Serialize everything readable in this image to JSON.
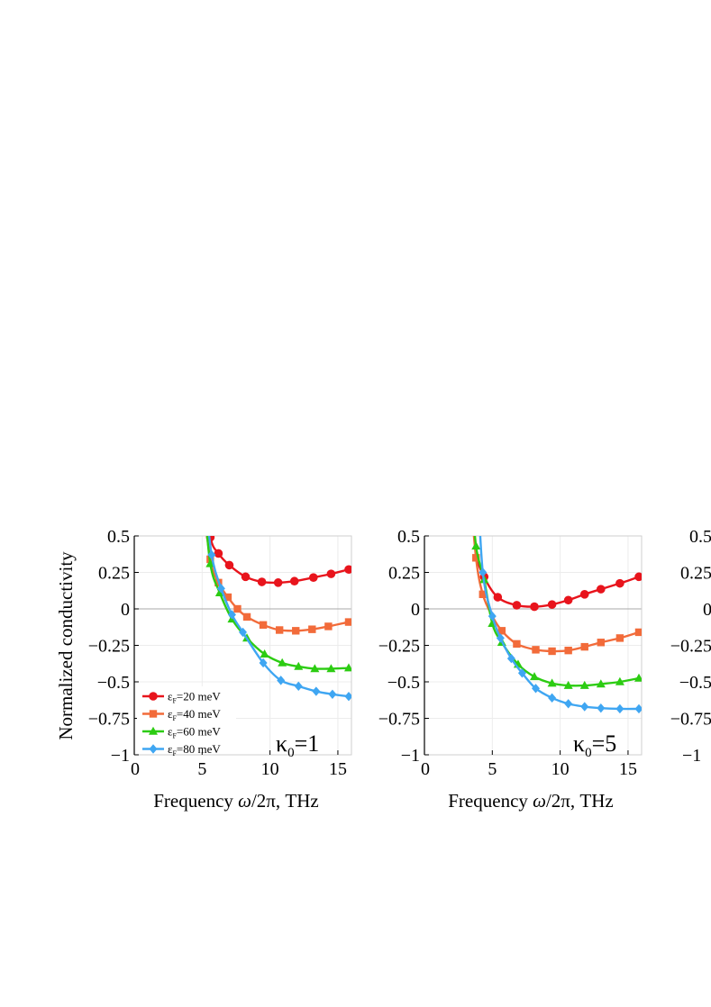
{
  "chart_data": [
    {
      "type": "line",
      "panel_label": "κ₀=1",
      "kappa_symbol": "κ",
      "kappa_sub": "0",
      "kappa_value": "=1",
      "xlabel_prefix": "Frequency ",
      "xlabel_omega": "ω",
      "xlabel_suffix": "/2π, THz",
      "ylabel": "Normalized conductivity",
      "xlim": [
        0,
        16
      ],
      "ylim": [
        -1,
        0.5
      ],
      "xticks": [
        "0",
        "5",
        "10",
        "15"
      ],
      "yticks": [
        "0.5",
        "0.25",
        "0",
        "−0.25",
        "−0.5",
        "−0.75",
        "−1"
      ],
      "legend": [
        {
          "prefix": "ε",
          "sub": "F",
          "suffix": "=20 meV"
        },
        {
          "prefix": "ε",
          "sub": "F",
          "suffix": "=40 meV"
        },
        {
          "prefix": "ε",
          "sub": "F",
          "suffix": "=60 meV"
        },
        {
          "prefix": "ε",
          "sub": "F",
          "suffix": "=80 meV"
        }
      ],
      "series": [
        {
          "name": "εF=20 meV",
          "color": "#e8141c",
          "marker": "circle",
          "x": [
            4.8,
            5.6,
            6.2,
            7.0,
            8.2,
            9.4,
            10.6,
            11.8,
            13.2,
            14.5,
            15.8
          ],
          "y": [
            0.9,
            0.49,
            0.38,
            0.3,
            0.22,
            0.185,
            0.18,
            0.19,
            0.215,
            0.24,
            0.27
          ],
          "mx": [
            5.6,
            6.2,
            7.0,
            8.2,
            9.4,
            10.6,
            11.8,
            13.2,
            14.5,
            15.8
          ],
          "my": [
            0.49,
            0.38,
            0.3,
            0.22,
            0.185,
            0.18,
            0.19,
            0.215,
            0.24,
            0.27
          ]
        },
        {
          "name": "εF=40 meV",
          "color": "#f26b3a",
          "marker": "square",
          "x": [
            5.0,
            5.6,
            6.2,
            6.9,
            7.6,
            8.3,
            9.5,
            10.7,
            11.9,
            13.1,
            14.3,
            15.8
          ],
          "y": [
            0.8,
            0.34,
            0.18,
            0.08,
            0.0,
            -0.055,
            -0.11,
            -0.145,
            -0.15,
            -0.14,
            -0.12,
            -0.09
          ],
          "mx": [
            5.6,
            6.2,
            6.9,
            7.6,
            8.3,
            9.5,
            10.7,
            11.9,
            13.1,
            14.3,
            15.8
          ],
          "my": [
            0.34,
            0.18,
            0.08,
            0.0,
            -0.055,
            -0.11,
            -0.145,
            -0.15,
            -0.14,
            -0.12,
            -0.09
          ]
        },
        {
          "name": "εF=60 meV",
          "color": "#2ccc12",
          "marker": "triangle",
          "x": [
            5.1,
            5.6,
            6.3,
            7.2,
            8.3,
            9.6,
            10.9,
            12.1,
            13.3,
            14.5,
            15.8
          ],
          "y": [
            0.8,
            0.31,
            0.11,
            -0.07,
            -0.2,
            -0.31,
            -0.37,
            -0.395,
            -0.41,
            -0.41,
            -0.405
          ],
          "mx": [
            5.6,
            6.3,
            7.2,
            8.3,
            9.6,
            10.9,
            12.1,
            13.3,
            14.5,
            15.8
          ],
          "my": [
            0.31,
            0.11,
            -0.07,
            -0.2,
            -0.31,
            -0.37,
            -0.395,
            -0.41,
            -0.41,
            -0.405
          ]
        },
        {
          "name": "εF=80 meV",
          "color": "#3fa6f2",
          "marker": "diamond",
          "x": [
            5.2,
            5.7,
            6.4,
            7.2,
            8.0,
            9.5,
            10.8,
            12.1,
            13.4,
            14.6,
            15.8
          ],
          "y": [
            0.8,
            0.37,
            0.14,
            -0.04,
            -0.16,
            -0.37,
            -0.49,
            -0.53,
            -0.565,
            -0.585,
            -0.6
          ],
          "mx": [
            5.7,
            6.4,
            7.2,
            8.0,
            9.5,
            10.8,
            12.1,
            13.4,
            14.6,
            15.8
          ],
          "my": [
            0.37,
            0.14,
            -0.04,
            -0.16,
            -0.37,
            -0.49,
            -0.53,
            -0.565,
            -0.585,
            -0.6
          ]
        }
      ]
    },
    {
      "type": "line",
      "panel_label": "κ₀=5",
      "kappa_symbol": "κ",
      "kappa_sub": "0",
      "kappa_value": "=5",
      "xlabel_prefix": "Frequency ",
      "xlabel_omega": "ω",
      "xlabel_suffix": "/2π, THz",
      "xlim": [
        0,
        16
      ],
      "ylim": [
        -1,
        0.5
      ],
      "xticks": [
        "0",
        "5",
        "10",
        "15"
      ],
      "yticks": [
        "0.5",
        "0.25",
        "0",
        "−0.25",
        "−0.5",
        "−0.75",
        "−1"
      ],
      "series": [
        {
          "name": "εF=20 meV",
          "color": "#e8141c",
          "marker": "circle",
          "x": [
            3.4,
            3.8,
            4.4,
            5.4,
            6.8,
            8.1,
            9.4,
            10.6,
            11.8,
            13.0,
            14.4,
            15.8
          ],
          "y": [
            0.9,
            0.4,
            0.22,
            0.08,
            0.025,
            0.015,
            0.03,
            0.06,
            0.1,
            0.135,
            0.175,
            0.22
          ],
          "mx": [
            4.4,
            5.4,
            6.8,
            8.1,
            9.4,
            10.6,
            11.8,
            13.0,
            14.4,
            15.8
          ],
          "my": [
            0.22,
            0.08,
            0.025,
            0.015,
            0.03,
            0.06,
            0.1,
            0.135,
            0.175,
            0.22
          ]
        },
        {
          "name": "εF=40 meV",
          "color": "#f26b3a",
          "marker": "square",
          "x": [
            3.3,
            3.8,
            4.3,
            5.0,
            5.7,
            6.8,
            8.2,
            9.4,
            10.6,
            11.8,
            13.0,
            14.4,
            15.8
          ],
          "y": [
            0.9,
            0.35,
            0.1,
            -0.05,
            -0.15,
            -0.24,
            -0.28,
            -0.29,
            -0.285,
            -0.26,
            -0.23,
            -0.2,
            -0.16
          ],
          "mx": [
            3.8,
            4.3,
            5.7,
            6.8,
            8.2,
            9.4,
            10.6,
            11.8,
            13.0,
            14.4,
            15.8
          ],
          "my": [
            0.35,
            0.1,
            -0.15,
            -0.24,
            -0.28,
            -0.29,
            -0.285,
            -0.26,
            -0.23,
            -0.2,
            -0.16
          ]
        },
        {
          "name": "εF=60 meV",
          "color": "#2ccc12",
          "marker": "triangle",
          "x": [
            3.4,
            3.8,
            4.4,
            5.0,
            5.7,
            6.9,
            8.1,
            9.4,
            10.6,
            11.8,
            13.0,
            14.4,
            15.8
          ],
          "y": [
            0.9,
            0.43,
            0.2,
            -0.1,
            -0.23,
            -0.38,
            -0.465,
            -0.51,
            -0.525,
            -0.525,
            -0.515,
            -0.5,
            -0.475
          ],
          "mx": [
            3.8,
            4.4,
            5.0,
            5.7,
            6.9,
            8.1,
            9.4,
            10.6,
            11.8,
            13.0,
            14.4,
            15.8
          ],
          "my": [
            0.43,
            0.2,
            -0.1,
            -0.23,
            -0.38,
            -0.465,
            -0.51,
            -0.525,
            -0.525,
            -0.515,
            -0.5,
            -0.475
          ]
        },
        {
          "name": "εF=80 meV",
          "color": "#3fa6f2",
          "marker": "diamond",
          "x": [
            3.9,
            4.3,
            5.0,
            5.6,
            6.4,
            7.2,
            8.2,
            9.4,
            10.6,
            11.8,
            13.0,
            14.4,
            15.8
          ],
          "y": [
            0.9,
            0.25,
            -0.05,
            -0.2,
            -0.34,
            -0.44,
            -0.545,
            -0.61,
            -0.65,
            -0.67,
            -0.68,
            -0.685,
            -0.685
          ],
          "mx": [
            4.3,
            5.0,
            5.6,
            6.4,
            7.2,
            8.2,
            9.4,
            10.6,
            11.8,
            13.0,
            14.4,
            15.8
          ],
          "my": [
            0.25,
            -0.05,
            -0.2,
            -0.34,
            -0.44,
            -0.545,
            -0.61,
            -0.65,
            -0.67,
            -0.68,
            -0.685,
            -0.685
          ]
        }
      ]
    },
    {
      "type": "line",
      "partial": true,
      "yticks": [
        "0.5",
        "0.25",
        "0",
        "−0.25",
        "−0.5",
        "−0.75",
        "−1"
      ]
    }
  ]
}
